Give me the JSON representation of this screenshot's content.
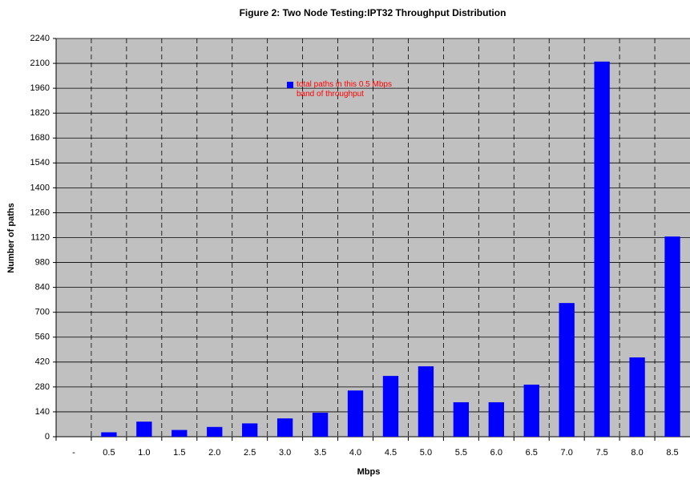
{
  "chart_data": {
    "type": "bar",
    "title": "Figure 2: Two Node Testing:IPT32 Throughput Distribution",
    "x_label": "Mbps",
    "y_label": "Number of paths",
    "categories": [
      "-",
      "0.5",
      "1.0",
      "1.5",
      "2.0",
      "2.5",
      "3.0",
      "3.5",
      "4.0",
      "4.5",
      "5.0",
      "5.5",
      "6.0",
      "6.5",
      "7.0",
      "7.5",
      "8.0",
      "8.5"
    ],
    "series": [
      {
        "name": "total paths in this 0.5 Mbps band of throughput",
        "color": "#0000ff",
        "values": [
          0,
          25,
          85,
          38,
          55,
          75,
          103,
          135,
          260,
          342,
          396,
          194,
          194,
          293,
          752,
          2110,
          446,
          1126
        ]
      }
    ],
    "ylim": [
      0,
      2240
    ],
    "yticks": [
      0,
      140,
      280,
      420,
      560,
      700,
      840,
      980,
      1120,
      1260,
      1400,
      1540,
      1680,
      1820,
      1960,
      2100,
      2240
    ],
    "grid": true
  }
}
